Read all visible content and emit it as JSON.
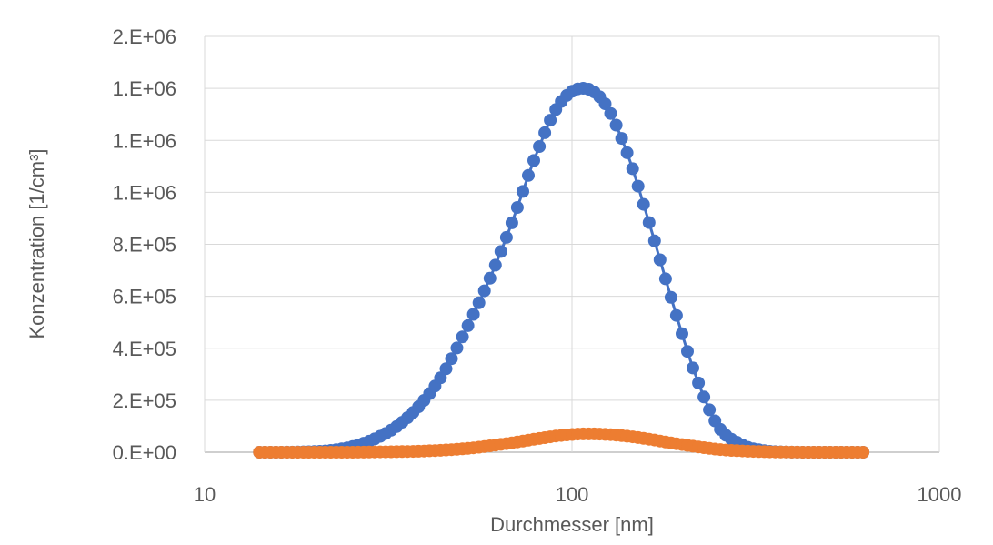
{
  "chart_data": {
    "type": "scatter",
    "title": "",
    "xlabel": "Durchmesser [nm]",
    "ylabel": "Konzentration [1/cm³]",
    "x_scale": "log",
    "xlim": [
      10,
      1000
    ],
    "ylim": [
      0,
      1600000
    ],
    "x_ticks": [
      10,
      100,
      1000
    ],
    "x_tick_labels": [
      "10",
      "100",
      "1000"
    ],
    "y_ticks": [
      0,
      200000,
      400000,
      600000,
      800000,
      1000000,
      1200000,
      1400000,
      1600000
    ],
    "y_tick_labels": [
      "0.E+00",
      "2.E+05",
      "4.E+05",
      "6.E+05",
      "8.E+05",
      "1.E+06",
      "1.E+06",
      "1.E+06",
      "2.E+06"
    ],
    "grid": true,
    "legend": "none",
    "series": [
      {
        "color": "#4472C4",
        "marker": "circle",
        "line": true,
        "x": [
          14.1,
          16.3,
          18.8,
          21.7,
          25.0,
          28.9,
          33.4,
          38.5,
          44.5,
          51.4,
          59.4,
          68.5,
          79.1,
          91.4,
          105.5,
          121.8,
          140.6,
          162.4,
          187.5,
          216.5,
          250.0,
          288.7,
          333.4,
          385.0,
          444.6,
          513.4,
          592.9,
          620.0
        ],
        "y": [
          0,
          200,
          1500,
          6000,
          20000,
          50000,
          100000,
          180000,
          300000,
          470000,
          660000,
          880000,
          1130000,
          1330000,
          1400000,
          1350000,
          1160000,
          880000,
          580000,
          300000,
          100000,
          30000,
          6000,
          1000,
          0,
          0,
          0,
          0
        ]
      },
      {
        "color": "#ED7D31",
        "marker": "circle",
        "line": true,
        "x": [
          14.1,
          16.3,
          18.8,
          21.7,
          25.0,
          28.9,
          33.4,
          38.5,
          44.5,
          51.4,
          59.4,
          68.5,
          79.1,
          91.4,
          105.5,
          121.8,
          140.6,
          162.4,
          187.5,
          216.5,
          250.0,
          288.7,
          333.4,
          385.0,
          444.6,
          513.4,
          592.9,
          620.0
        ],
        "y": [
          0,
          0,
          0,
          0,
          0,
          1000,
          2000,
          4000,
          8000,
          14000,
          24000,
          36000,
          50000,
          63000,
          70000,
          69000,
          62000,
          50000,
          35000,
          22000,
          11000,
          5000,
          2000,
          500,
          0,
          0,
          0,
          0
        ]
      }
    ]
  }
}
